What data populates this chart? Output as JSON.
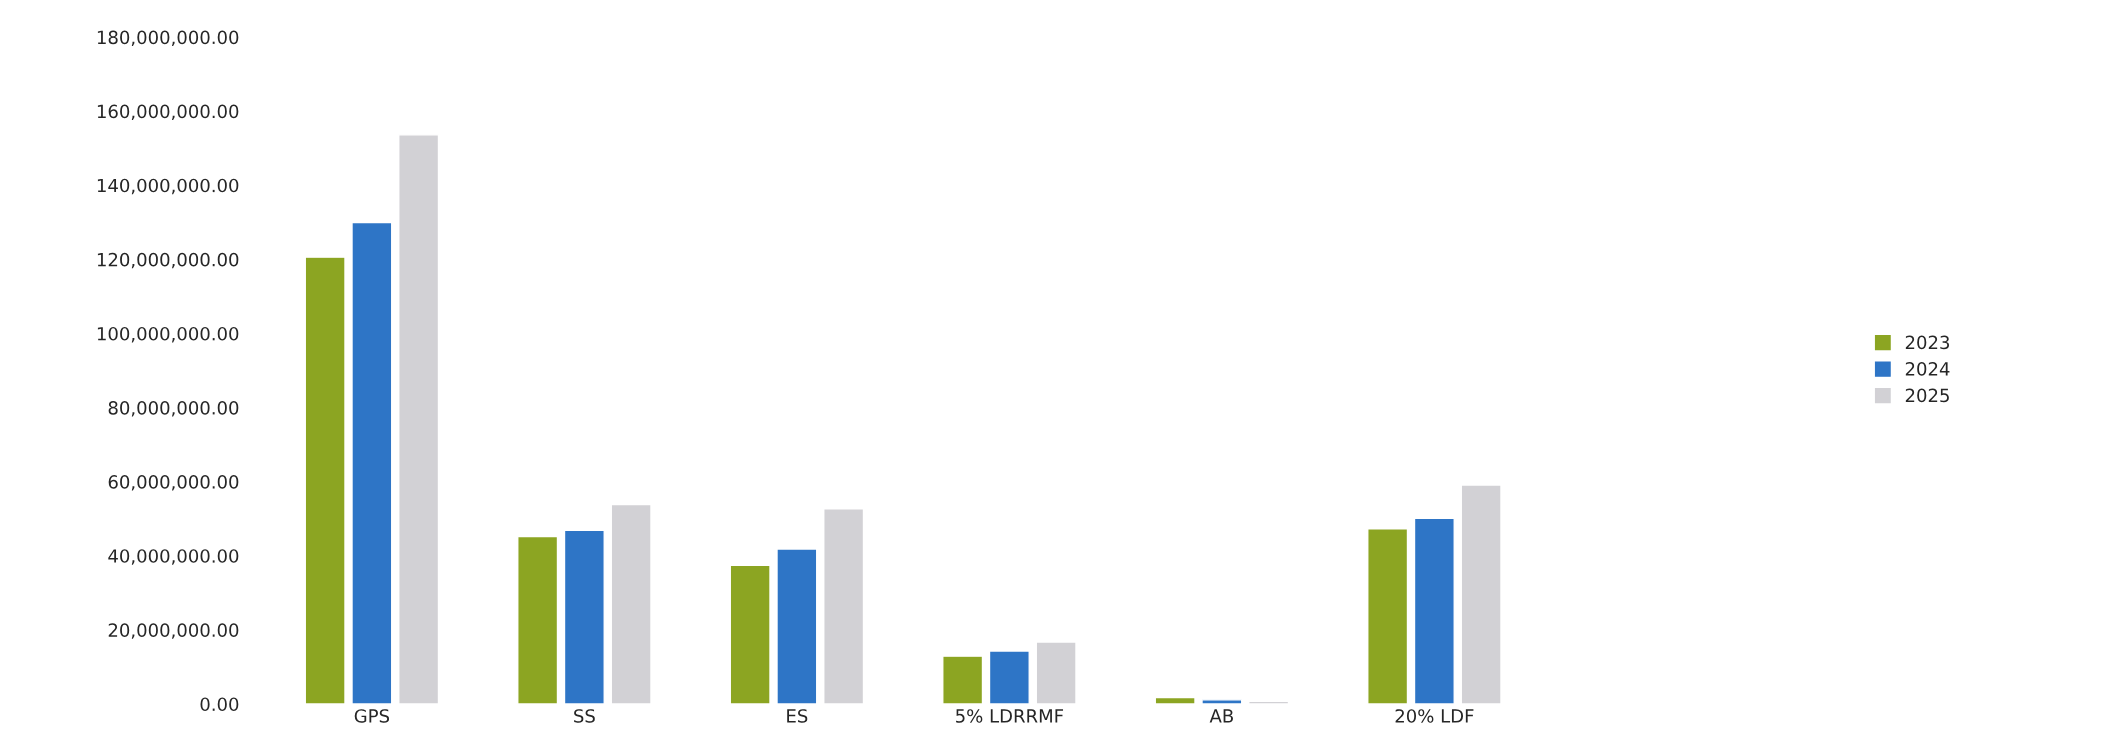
{
  "chart_data": {
    "type": "bar",
    "categories": [
      "GPS",
      "SS",
      "ES",
      "5% LDRRMF",
      "AB",
      "20% LDF"
    ],
    "series": [
      {
        "name": "2023",
        "color": "#8ca522",
        "values": [
          120600000,
          45200000,
          37400000,
          12900000,
          1700000,
          47300000
        ]
      },
      {
        "name": "2024",
        "color": "#2e75c6",
        "values": [
          129900000,
          46900000,
          41800000,
          14300000,
          1100000,
          50100000
        ]
      },
      {
        "name": "2025",
        "color": "#d2d1d5",
        "values": [
          153600000,
          53800000,
          52700000,
          16700000,
          700000,
          59100000
        ]
      }
    ],
    "ylim": [
      0,
      180000000
    ],
    "yticks": [
      {
        "value": 0,
        "label": "0.00"
      },
      {
        "value": 20000000,
        "label": "20,000,000.00"
      },
      {
        "value": 40000000,
        "label": "40,000,000.00"
      },
      {
        "value": 60000000,
        "label": "60,000,000.00"
      },
      {
        "value": 80000000,
        "label": "80,000,000.00"
      },
      {
        "value": 100000000,
        "label": "100,000,000.00"
      },
      {
        "value": 120000000,
        "label": "120,000,000.00"
      },
      {
        "value": 140000000,
        "label": "140,000,000.00"
      },
      {
        "value": 160000000,
        "label": "160,000,000.00"
      },
      {
        "value": 180000000,
        "label": "180,000,000.00"
      }
    ],
    "legend": "right",
    "grid": false
  }
}
